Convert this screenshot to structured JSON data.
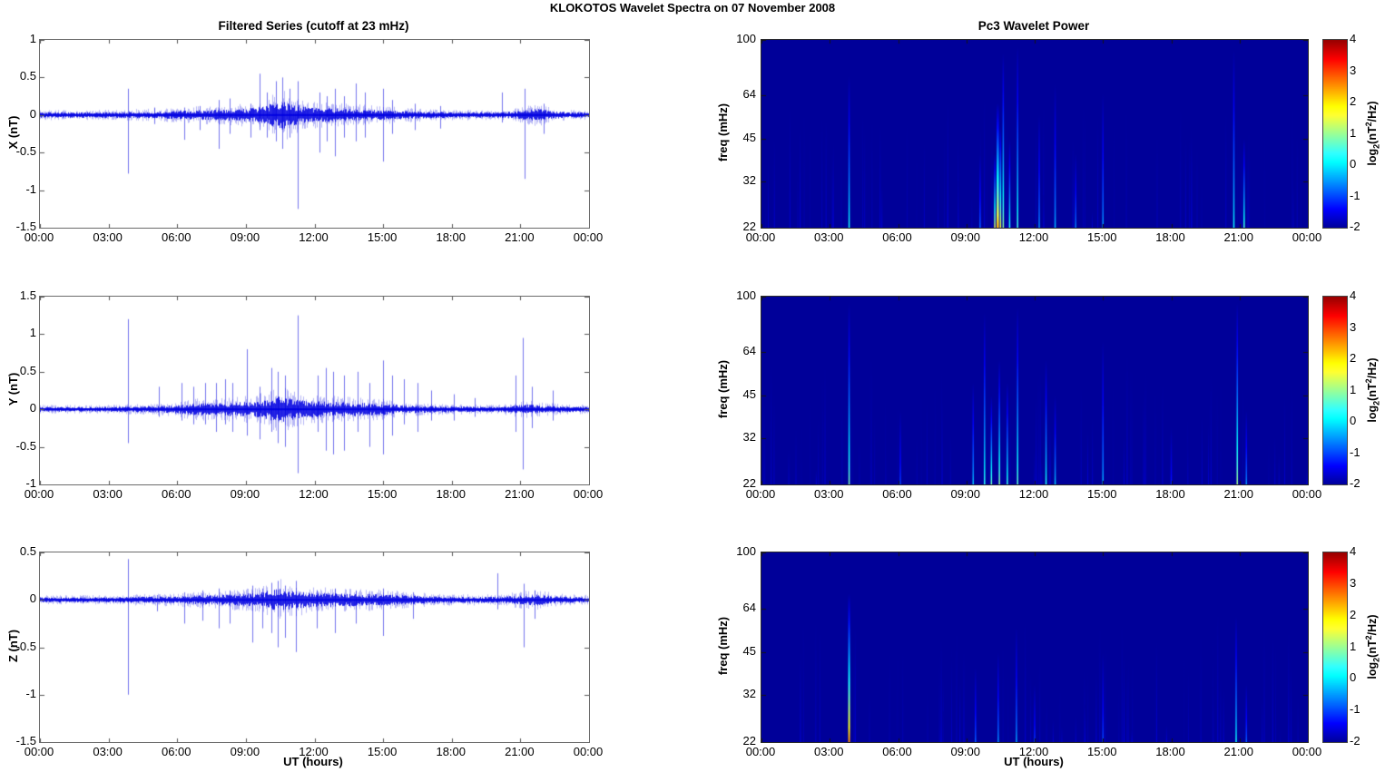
{
  "chart_data": {
    "type": "multi-panel",
    "suptitle": "KLOKOTOS Wavelet Spectra on 07 November 2008",
    "time_axis": {
      "xticks": [
        "00:00",
        "03:00",
        "06:00",
        "09:00",
        "12:00",
        "15:00",
        "18:00",
        "21:00",
        "00:00"
      ],
      "xlabel": "UT (hours)",
      "hours_range": [
        0,
        24
      ]
    },
    "line_color": "#0000e0",
    "series_panels": [
      {
        "id": "x",
        "title": "Filtered Series (cutoff at 23 mHz)",
        "ylabel": "X (nT)",
        "ylim": [
          -1.5,
          1
        ],
        "yticks": [
          1,
          0.5,
          0,
          -0.5,
          -1,
          -1.5
        ],
        "noise_envelope": [
          [
            0,
            0.035
          ],
          [
            3,
            0.035
          ],
          [
            4,
            0.04
          ],
          [
            6,
            0.05
          ],
          [
            7,
            0.06
          ],
          [
            8.5,
            0.07
          ],
          [
            9.5,
            0.09
          ],
          [
            10,
            0.13
          ],
          [
            10.5,
            0.18
          ],
          [
            11,
            0.15
          ],
          [
            11.5,
            0.1
          ],
          [
            12,
            0.09
          ],
          [
            13,
            0.08
          ],
          [
            14,
            0.07
          ],
          [
            15,
            0.06
          ],
          [
            16,
            0.05
          ],
          [
            17,
            0.04
          ],
          [
            18,
            0.035
          ],
          [
            20,
            0.035
          ],
          [
            21,
            0.05
          ],
          [
            21.7,
            0.08
          ],
          [
            22.3,
            0.05
          ],
          [
            23,
            0.035
          ],
          [
            24,
            0.03
          ]
        ],
        "spikes": [
          [
            3.85,
            0.35,
            -0.78
          ],
          [
            5.0,
            0.1,
            -0.12
          ],
          [
            6.3,
            0.1,
            -0.33
          ],
          [
            7.0,
            0.12,
            -0.2
          ],
          [
            7.8,
            0.2,
            -0.45
          ],
          [
            8.3,
            0.22,
            -0.25
          ],
          [
            9.2,
            0.15,
            -0.3
          ],
          [
            9.6,
            0.55,
            -0.2
          ],
          [
            9.9,
            0.3,
            -0.3
          ],
          [
            10.3,
            0.45,
            -0.35
          ],
          [
            10.6,
            0.5,
            -0.45
          ],
          [
            10.9,
            0.35,
            -0.3
          ],
          [
            11.25,
            0.45,
            -1.25
          ],
          [
            12.2,
            0.3,
            -0.5
          ],
          [
            12.55,
            0.25,
            -0.35
          ],
          [
            12.9,
            0.35,
            -0.55
          ],
          [
            13.3,
            0.25,
            -0.3
          ],
          [
            13.8,
            0.42,
            -0.35
          ],
          [
            14.2,
            0.3,
            -0.3
          ],
          [
            15.0,
            0.35,
            -0.62
          ],
          [
            15.4,
            0.2,
            -0.25
          ],
          [
            16.4,
            0.15,
            -0.2
          ],
          [
            17.5,
            0.12,
            -0.18
          ],
          [
            20.2,
            0.3,
            -0.1
          ],
          [
            21.2,
            0.35,
            -0.85
          ],
          [
            22.0,
            0.15,
            -0.25
          ]
        ]
      },
      {
        "id": "y",
        "ylabel": "Y (nT)",
        "ylim": [
          -1,
          1.5
        ],
        "yticks": [
          1.5,
          1,
          0.5,
          0,
          -0.5,
          -1
        ],
        "noise_envelope": [
          [
            0,
            0.03
          ],
          [
            3,
            0.03
          ],
          [
            4,
            0.035
          ],
          [
            5.5,
            0.045
          ],
          [
            6,
            0.055
          ],
          [
            7,
            0.075
          ],
          [
            8,
            0.08
          ],
          [
            9,
            0.09
          ],
          [
            9.5,
            0.1
          ],
          [
            10,
            0.13
          ],
          [
            10.5,
            0.16
          ],
          [
            11,
            0.13
          ],
          [
            11.5,
            0.11
          ],
          [
            12,
            0.1
          ],
          [
            13,
            0.09
          ],
          [
            14,
            0.08
          ],
          [
            15,
            0.07
          ],
          [
            16,
            0.05
          ],
          [
            17,
            0.04
          ],
          [
            18,
            0.035
          ],
          [
            20,
            0.03
          ],
          [
            20.8,
            0.05
          ],
          [
            21.3,
            0.06
          ],
          [
            22,
            0.045
          ],
          [
            23,
            0.035
          ],
          [
            24,
            0.03
          ]
        ],
        "spikes": [
          [
            3.85,
            1.2,
            -0.45
          ],
          [
            5.2,
            0.3,
            -0.1
          ],
          [
            6.2,
            0.35,
            -0.15
          ],
          [
            6.7,
            0.3,
            -0.2
          ],
          [
            7.2,
            0.35,
            -0.2
          ],
          [
            7.7,
            0.35,
            -0.3
          ],
          [
            8.1,
            0.4,
            -0.2
          ],
          [
            8.4,
            0.35,
            -0.3
          ],
          [
            9.05,
            0.8,
            -0.35
          ],
          [
            9.6,
            0.3,
            -0.4
          ],
          [
            10.1,
            0.55,
            -0.3
          ],
          [
            10.4,
            0.5,
            -0.45
          ],
          [
            10.7,
            0.45,
            -0.5
          ],
          [
            11.25,
            1.25,
            -0.85
          ],
          [
            12.15,
            0.45,
            -0.3
          ],
          [
            12.5,
            0.55,
            -0.55
          ],
          [
            12.8,
            0.5,
            -0.6
          ],
          [
            13.3,
            0.45,
            -0.55
          ],
          [
            13.9,
            0.5,
            -0.3
          ],
          [
            14.4,
            0.35,
            -0.5
          ],
          [
            15.0,
            0.65,
            -0.6
          ],
          [
            15.4,
            0.45,
            -0.35
          ],
          [
            15.9,
            0.4,
            -0.2
          ],
          [
            16.5,
            0.35,
            -0.3
          ],
          [
            17.1,
            0.25,
            -0.15
          ],
          [
            18.1,
            0.2,
            -0.15
          ],
          [
            19.0,
            0.15,
            -0.1
          ],
          [
            20.8,
            0.45,
            -0.3
          ],
          [
            21.1,
            0.95,
            -0.8
          ],
          [
            21.5,
            0.3,
            -0.25
          ],
          [
            22.4,
            0.25,
            -0.15
          ]
        ]
      },
      {
        "id": "z",
        "ylabel": "Z (nT)",
        "ylim": [
          -1.5,
          0.5
        ],
        "yticks": [
          0.5,
          0,
          -0.5,
          -1,
          -1.5
        ],
        "noise_envelope": [
          [
            0,
            0.025
          ],
          [
            3,
            0.025
          ],
          [
            4,
            0.03
          ],
          [
            6,
            0.035
          ],
          [
            7,
            0.045
          ],
          [
            8,
            0.05
          ],
          [
            9,
            0.06
          ],
          [
            9.5,
            0.07
          ],
          [
            10,
            0.09
          ],
          [
            10.5,
            0.11
          ],
          [
            11,
            0.09
          ],
          [
            11.5,
            0.08
          ],
          [
            12,
            0.07
          ],
          [
            13,
            0.065
          ],
          [
            14,
            0.06
          ],
          [
            15,
            0.055
          ],
          [
            16,
            0.045
          ],
          [
            17,
            0.035
          ],
          [
            18,
            0.03
          ],
          [
            20,
            0.03
          ],
          [
            21,
            0.045
          ],
          [
            21.7,
            0.055
          ],
          [
            22.5,
            0.035
          ],
          [
            24,
            0.025
          ]
        ],
        "spikes": [
          [
            3.85,
            0.43,
            -1.0
          ],
          [
            5.1,
            0.05,
            -0.12
          ],
          [
            6.3,
            0.08,
            -0.25
          ],
          [
            7.1,
            0.1,
            -0.22
          ],
          [
            7.8,
            0.12,
            -0.3
          ],
          [
            8.3,
            0.1,
            -0.25
          ],
          [
            9.3,
            0.15,
            -0.45
          ],
          [
            9.7,
            0.12,
            -0.3
          ],
          [
            10.1,
            0.18,
            -0.35
          ],
          [
            10.4,
            0.2,
            -0.5
          ],
          [
            10.7,
            0.15,
            -0.4
          ],
          [
            11.2,
            0.2,
            -0.55
          ],
          [
            12.1,
            0.1,
            -0.3
          ],
          [
            12.9,
            0.12,
            -0.35
          ],
          [
            13.8,
            0.1,
            -0.25
          ],
          [
            15.0,
            0.12,
            -0.38
          ],
          [
            16.3,
            0.08,
            -0.2
          ],
          [
            20.0,
            0.28,
            -0.1
          ],
          [
            21.15,
            0.17,
            -0.5
          ],
          [
            21.6,
            0.1,
            -0.2
          ]
        ]
      }
    ],
    "wavelet_panels": [
      {
        "id": "x",
        "title": "Pc3 Wavelet Power",
        "ylabel": "freq (mHz)",
        "yticks": [
          100,
          64,
          45,
          32,
          22
        ],
        "flim": [
          22,
          100
        ],
        "clim": [
          -2,
          4
        ],
        "background_value": -2,
        "events": [
          {
            "t": 3.85,
            "f_top": 75,
            "peak": 0.3
          },
          {
            "t": 9.6,
            "f_top": 40,
            "peak": -0.8
          },
          {
            "t": 10.25,
            "f_top": 40,
            "peak": 1.5
          },
          {
            "t": 10.38,
            "f_top": 60,
            "peak": 2.3,
            "w": 2.5
          },
          {
            "t": 10.5,
            "f_top": 50,
            "peak": 1.7
          },
          {
            "t": 10.62,
            "f_top": 90,
            "peak": 1.0
          },
          {
            "t": 10.9,
            "f_top": 45,
            "peak": 0.4
          },
          {
            "t": 11.25,
            "f_top": 95,
            "peak": 0.5
          },
          {
            "t": 12.2,
            "f_top": 55,
            "peak": -0.5
          },
          {
            "t": 12.9,
            "f_top": 70,
            "peak": -0.3
          },
          {
            "t": 13.8,
            "f_top": 40,
            "peak": -0.6
          },
          {
            "t": 15.0,
            "f_top": 65,
            "peak": -0.4
          },
          {
            "t": 20.75,
            "f_top": 92,
            "peak": 0.2
          },
          {
            "t": 21.2,
            "f_top": 45,
            "peak": 0.6
          }
        ]
      },
      {
        "id": "y",
        "ylabel": "freq (mHz)",
        "yticks": [
          100,
          64,
          45,
          32,
          22
        ],
        "flim": [
          22,
          100
        ],
        "clim": [
          -2,
          4
        ],
        "background_value": -2,
        "events": [
          {
            "t": 3.85,
            "f_top": 95,
            "peak": 0.9
          },
          {
            "t": 6.1,
            "f_top": 40,
            "peak": -1.0
          },
          {
            "t": 9.3,
            "f_top": 50,
            "peak": -0.2
          },
          {
            "t": 9.8,
            "f_top": 88,
            "peak": 0.4
          },
          {
            "t": 10.1,
            "f_top": 45,
            "peak": 0.8
          },
          {
            "t": 10.45,
            "f_top": 60,
            "peak": 1.0
          },
          {
            "t": 10.8,
            "f_top": 50,
            "peak": 0.5
          },
          {
            "t": 11.25,
            "f_top": 92,
            "peak": 0.7
          },
          {
            "t": 12.5,
            "f_top": 60,
            "peak": 0.3
          },
          {
            "t": 12.9,
            "f_top": 45,
            "peak": -0.2
          },
          {
            "t": 15.0,
            "f_top": 70,
            "peak": -0.3
          },
          {
            "t": 18.0,
            "f_top": 35,
            "peak": -1.2
          },
          {
            "t": 20.9,
            "f_top": 95,
            "peak": 1.1
          },
          {
            "t": 21.3,
            "f_top": 40,
            "peak": -0.5
          }
        ]
      },
      {
        "id": "z",
        "ylabel": "freq (mHz)",
        "yticks": [
          100,
          64,
          45,
          32,
          22
        ],
        "flim": [
          22,
          100
        ],
        "clim": [
          -2,
          4
        ],
        "background_value": -2,
        "events": [
          {
            "t": 3.85,
            "f_top": 72,
            "peak": 2.6,
            "w": 2
          },
          {
            "t": 9.4,
            "f_top": 40,
            "peak": -0.8
          },
          {
            "t": 10.4,
            "f_top": 45,
            "peak": -0.5
          },
          {
            "t": 11.2,
            "f_top": 55,
            "peak": -0.4
          },
          {
            "t": 12.0,
            "f_top": 35,
            "peak": -1.0
          },
          {
            "t": 15.0,
            "f_top": 45,
            "peak": -0.9
          },
          {
            "t": 20.85,
            "f_top": 60,
            "peak": 0.2
          },
          {
            "t": 21.3,
            "f_top": 35,
            "peak": -0.8
          }
        ]
      }
    ],
    "colorbar": {
      "ticks": [
        4,
        3,
        2,
        1,
        0,
        -1,
        -2
      ],
      "label_pre": "log",
      "label_sub": "2",
      "label_mid": "(nT",
      "label_sup": "2",
      "label_post": "/Hz)"
    }
  }
}
